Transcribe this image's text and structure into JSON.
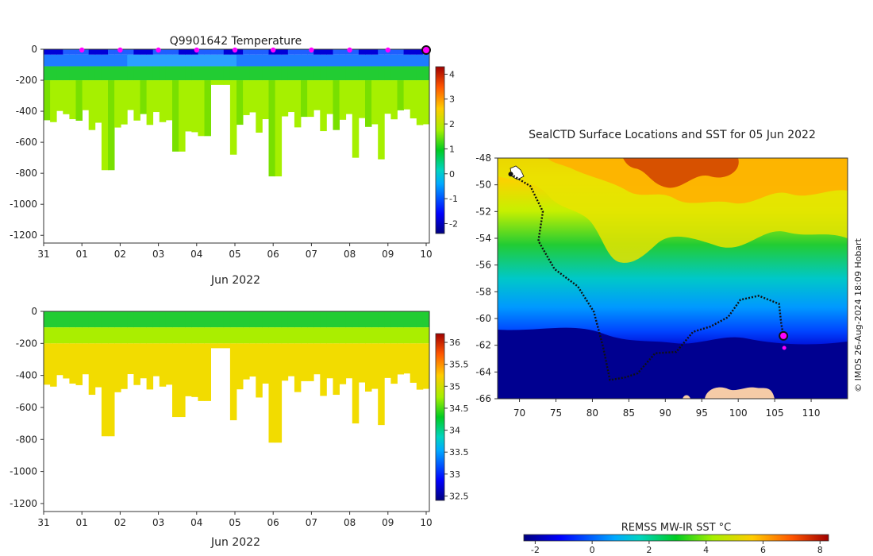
{
  "chart_data": [
    {
      "id": "temperature-section",
      "type": "heatmap",
      "title": "Q9901642  Temperature",
      "xlabel": "Jun 2022",
      "ylabel": "",
      "x_tick_labels": [
        "31",
        "01",
        "02",
        "03",
        "04",
        "05",
        "06",
        "07",
        "08",
        "09",
        "10"
      ],
      "x_range_days": [
        0,
        10
      ],
      "y_ticks": [
        0,
        -200,
        -400,
        -600,
        -800,
        -1000,
        -1200
      ],
      "y_range": [
        -1250,
        0
      ],
      "colorbar": {
        "min": -2.4,
        "max": 4.3,
        "ticks": [
          4,
          3,
          2,
          1,
          0,
          -1,
          -2
        ]
      },
      "surface_markers_days": [
        1,
        2,
        3,
        4,
        5,
        6,
        7,
        8,
        9
      ],
      "current_marker_day": 10
    },
    {
      "id": "salinity-section",
      "type": "heatmap",
      "title": "",
      "xlabel": "Jun 2022",
      "ylabel": "",
      "x_tick_labels": [
        "31",
        "01",
        "02",
        "03",
        "04",
        "05",
        "06",
        "07",
        "08",
        "09",
        "10"
      ],
      "x_range_days": [
        0,
        10
      ],
      "y_ticks": [
        0,
        -200,
        -400,
        -600,
        -800,
        -1000,
        -1200
      ],
      "y_range": [
        -1250,
        0
      ],
      "colorbar": {
        "min": 32.4,
        "max": 36.2,
        "ticks": [
          36,
          35.5,
          35,
          34.5,
          34,
          33.5,
          33,
          32.5
        ]
      }
    },
    {
      "id": "sst-map",
      "type": "map",
      "title": "SealCTD Surface Locations and SST for 05 Jun 2022",
      "x_ticks": [
        70,
        75,
        80,
        85,
        90,
        95,
        100,
        105,
        110
      ],
      "x_range": [
        67,
        115
      ],
      "y_ticks": [
        -48,
        -50,
        -52,
        -54,
        -56,
        -58,
        -60,
        -62,
        -64,
        -66
      ],
      "y_range": [
        -66,
        -48
      ],
      "colorbar_label": "REMSS MW-IR SST °C",
      "colorbar": {
        "min": -2.4,
        "max": 8.3,
        "ticks": [
          -2,
          0,
          2,
          4,
          6,
          8
        ]
      },
      "track_start": [
        68.8,
        -49.2
      ],
      "track_end": [
        106.2,
        -61.3
      ],
      "credit": "© IMOS 26-Aug-2024 18:09 Hobart"
    }
  ]
}
